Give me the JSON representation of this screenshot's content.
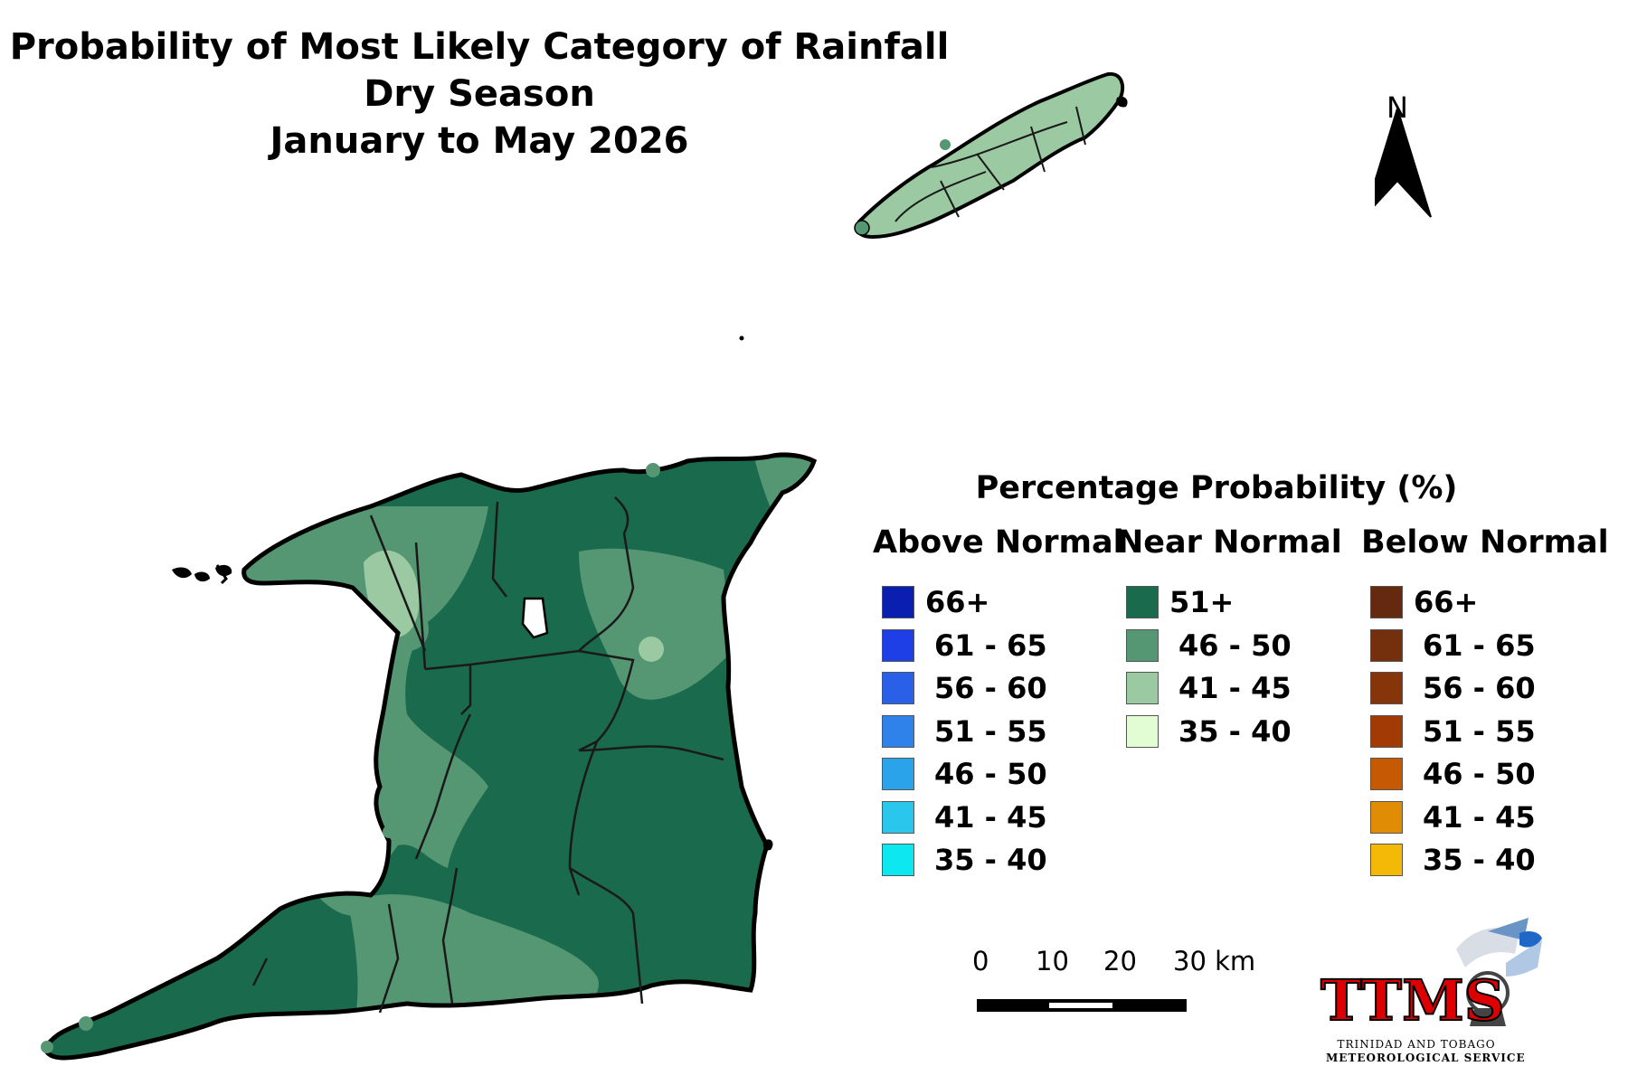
{
  "title": {
    "line1": "Probability of Most Likely Category of Rainfall",
    "line2": "Dry Season",
    "line3": "January to May 2026"
  },
  "north_arrow": {
    "label": "N"
  },
  "legend": {
    "title": "Percentage Probability (%)",
    "columns": [
      {
        "heading": "Above Normal",
        "items": [
          {
            "label": "66+",
            "color": "#0a1fb0"
          },
          {
            "label": "61 - 65",
            "color": "#1f3fe6"
          },
          {
            "label": "56 - 60",
            "color": "#2a5fe8"
          },
          {
            "label": "51 - 55",
            "color": "#2f82ea"
          },
          {
            "label": "46 - 50",
            "color": "#2aa3ea"
          },
          {
            "label": "41 - 45",
            "color": "#2ac6ec"
          },
          {
            "label": "35 - 40",
            "color": "#0de8f0"
          }
        ]
      },
      {
        "heading": "Near Normal",
        "items": [
          {
            "label": "51+",
            "color": "#1a6a4e"
          },
          {
            "label": "46 - 50",
            "color": "#559673"
          },
          {
            "label": "41 - 45",
            "color": "#9bc9a2"
          },
          {
            "label": "35 - 40",
            "color": "#e2fcd3"
          }
        ]
      },
      {
        "heading": "Below Normal",
        "items": [
          {
            "label": "66+",
            "color": "#64290f"
          },
          {
            "label": "61 - 65",
            "color": "#74300d"
          },
          {
            "label": "56 - 60",
            "color": "#86340a"
          },
          {
            "label": "51 - 55",
            "color": "#a23a05"
          },
          {
            "label": "46 - 50",
            "color": "#c65a03"
          },
          {
            "label": "41 - 45",
            "color": "#e08c05"
          },
          {
            "label": "35 - 40",
            "color": "#f4b907"
          }
        ]
      }
    ]
  },
  "scale_bar": {
    "ticks": [
      "0",
      "10",
      "20",
      "30 km"
    ]
  },
  "logo": {
    "text": "TTMS",
    "line1": "TRINIDAD AND TOBAGO",
    "line2": "METEOROLOGICAL SERVICE"
  }
}
